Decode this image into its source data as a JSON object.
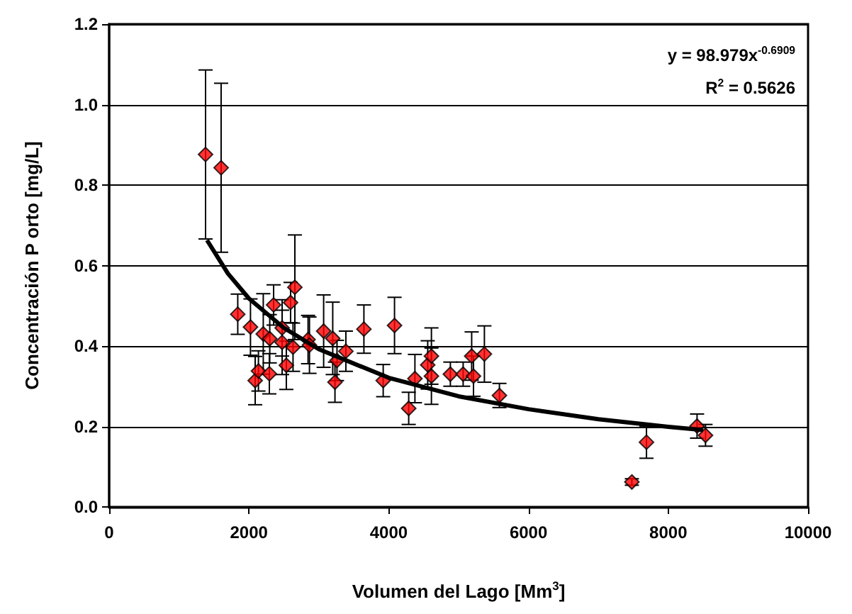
{
  "chart_data": {
    "type": "scatter",
    "xlabel": "Volumen del Lago [Mm$^{3}$]",
    "ylabel": "Concentración P orto [mg/L]",
    "annotations": [
      "y = 98.979x$^{-0.6909}$",
      "R$^{2}$ = 0.5626"
    ],
    "xlim": [
      0,
      10000
    ],
    "xticks": [
      0,
      2000,
      4000,
      6000,
      8000,
      10000
    ],
    "ylim": [
      0,
      1.2
    ],
    "yticks": [
      {
        "value": 0,
        "label": "0.0"
      },
      {
        "value": 0.2,
        "label": "0.2"
      },
      {
        "value": 0.4,
        "label": "0.4"
      },
      {
        "value": 0.6,
        "label": "0.6"
      },
      {
        "value": 0.8,
        "label": "0.8"
      },
      {
        "value": 1,
        "label": "1.0"
      },
      {
        "value": 1.2,
        "label": "1.2"
      }
    ],
    "grid": "y",
    "marker": "diamond",
    "series": [
      {
        "color": "#ff0000",
        "x": [
          1379,
          1602,
          1840,
          2022,
          2089,
          2136,
          2205,
          2298,
          2292,
          2353,
          2475,
          2475,
          2535,
          2596,
          2657,
          2631,
          2846,
          2866,
          3069,
          3199,
          3231,
          3260,
          3387,
          3645,
          3921,
          4083,
          4286,
          4375,
          4558,
          4611,
          4611,
          4882,
          5065,
          5187,
          5213,
          5369,
          5584,
          7479,
          7688,
          8412,
          8533
        ],
        "values": [
          0.876,
          0.843,
          0.479,
          0.447,
          0.314,
          0.338,
          0.43,
          0.418,
          0.331,
          0.502,
          0.445,
          0.409,
          0.352,
          0.508,
          0.546,
          0.397,
          0.416,
          0.402,
          0.437,
          0.419,
          0.31,
          0.364,
          0.387,
          0.442,
          0.314,
          0.451,
          0.245,
          0.319,
          0.353,
          0.375,
          0.325,
          0.33,
          0.33,
          0.375,
          0.325,
          0.38,
          0.277,
          0.062,
          0.161,
          0.201,
          0.178
        ],
        "errors": [
          0.21,
          0.21,
          0.05,
          0.07,
          0.06,
          0.05,
          0.1,
          0.06,
          0.05,
          0.05,
          0.07,
          0.08,
          0.06,
          0.05,
          0.13,
          0.06,
          0.06,
          0.07,
          0.09,
          0.09,
          0.05,
          0.05,
          0.05,
          0.06,
          0.04,
          0.07,
          0.04,
          0.06,
          0.06,
          0.07,
          0.07,
          0.03,
          0.03,
          0.06,
          0.05,
          0.07,
          0.03,
          0.008,
          0.04,
          0.03,
          0.027
        ]
      },
      {
        "type": "line",
        "color": "#000000",
        "marker": "none",
        "line_style": "solid",
        "x": [
          1400,
          1700,
          2000,
          2500,
          3000,
          4000,
          5000,
          6000,
          7000,
          8000,
          8500
        ],
        "values": [
          0.663,
          0.58,
          0.518,
          0.445,
          0.392,
          0.321,
          0.275,
          0.243,
          0.218,
          0.199,
          0.191
        ]
      }
    ]
  }
}
